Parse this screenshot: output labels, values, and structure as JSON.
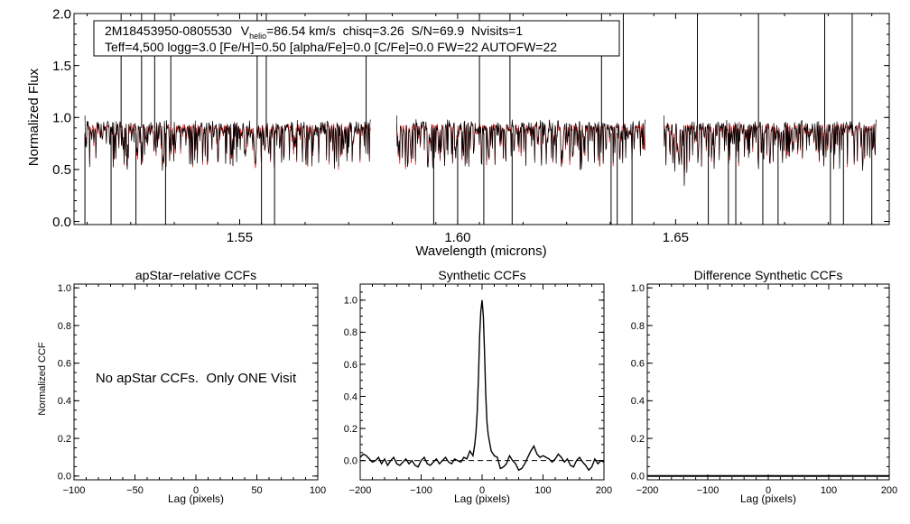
{
  "colors": {
    "observed": "#000000",
    "model": "#e00000",
    "axes": "#000000"
  },
  "chart_data": [
    {
      "id": "spectrum",
      "type": "line",
      "title": "",
      "xlabel": "Wavelength (microns)",
      "ylabel": "Normalized Flux",
      "xlim": [
        1.512,
        1.699
      ],
      "ylim": [
        -0.03,
        2.0
      ],
      "xticks": [
        1.55,
        1.6,
        1.65
      ],
      "xtick_labels": [
        "1.55",
        "1.60",
        "1.65"
      ],
      "yticks": [
        0.0,
        0.5,
        1.0,
        1.5,
        2.0
      ],
      "ytick_labels": [
        "0.0",
        "0.5",
        "1.0",
        "1.5",
        "2.0"
      ],
      "chips": [
        [
          1.5145,
          1.58
        ],
        [
          1.586,
          1.643
        ],
        [
          1.6473,
          1.696
        ]
      ],
      "continuum_level": 0.92,
      "spikes_up": [
        1.5228,
        1.5275,
        1.5305,
        1.5342,
        1.554,
        1.5561,
        1.579,
        1.605,
        1.612,
        1.633,
        1.638,
        1.655,
        1.669,
        1.6842,
        1.6905
      ],
      "dips_down": [
        1.5145,
        1.5205,
        1.5262,
        1.533,
        1.555,
        1.558,
        1.5945,
        1.6,
        1.606,
        1.6125,
        1.6352,
        1.6366,
        1.64,
        1.6575,
        1.6621,
        1.6638,
        1.67,
        1.6735,
        1.6855,
        1.6885,
        1.695
      ],
      "annotation": {
        "line1_id": "2M18453950-0805530",
        "line1_v": "V",
        "line1_sub": "helio",
        "line1_rest": "=86.54 km/s  chisq=3.26  S/N=69.9  Nvisits=1",
        "line2": "Teff=4,500 logg=3.0 [Fe/H]=0.50 [alpha/Fe]=0.0 [C/Fe]=0.0 FW=22 AUTOFW=22"
      }
    },
    {
      "id": "apstar",
      "type": "line",
      "title": "apStar−relative CCFs",
      "xlabel": "Lag (pixels)",
      "ylabel": "Normalized CCF",
      "xlim": [
        -100,
        100
      ],
      "ylim": [
        -0.02,
        1.02
      ],
      "xticks": [
        -100,
        -50,
        0,
        50,
        100
      ],
      "xtick_labels": [
        "−100",
        "−50",
        "0",
        "50",
        "100"
      ],
      "yticks": [
        0.0,
        0.2,
        0.4,
        0.6,
        0.8,
        1.0
      ],
      "ytick_labels": [
        "0.0",
        "0.2",
        "0.4",
        "0.6",
        "0.8",
        "1.0"
      ],
      "message": "No apStar CCFs.  Only ONE Visit"
    },
    {
      "id": "synthetic",
      "type": "line",
      "title": "Synthetic CCFs",
      "xlabel": "Lag (pixels)",
      "ylabel": "",
      "xlim": [
        -200,
        200
      ],
      "ylim": [
        -0.12,
        1.1
      ],
      "xticks": [
        -200,
        -100,
        0,
        100,
        200
      ],
      "xtick_labels": [
        "−200",
        "−100",
        "0",
        "100",
        "200"
      ],
      "yticks": [
        0.0,
        0.2,
        0.4,
        0.6,
        0.8,
        1.0
      ],
      "ytick_labels": [
        "0.0",
        "0.2",
        "0.4",
        "0.6",
        "0.8",
        "1.0"
      ],
      "zero_line": 0.0,
      "peak_lag": 0,
      "peak_value": 1.0,
      "series": [
        {
          "name": "ccf",
          "x": [
            -200,
            -195,
            -190,
            -185,
            -180,
            -175,
            -170,
            -165,
            -160,
            -155,
            -150,
            -145,
            -140,
            -135,
            -130,
            -125,
            -120,
            -115,
            -110,
            -105,
            -100,
            -95,
            -90,
            -85,
            -80,
            -75,
            -70,
            -65,
            -60,
            -55,
            -50,
            -45,
            -40,
            -35,
            -30,
            -25,
            -20,
            -15,
            -12,
            -10,
            -8,
            -6,
            -4,
            -2,
            0,
            2,
            4,
            6,
            8,
            10,
            12,
            15,
            20,
            25,
            30,
            35,
            40,
            45,
            50,
            55,
            60,
            65,
            70,
            75,
            80,
            85,
            90,
            95,
            100,
            105,
            110,
            115,
            120,
            125,
            130,
            135,
            140,
            145,
            150,
            155,
            160,
            165,
            170,
            175,
            180,
            185,
            190,
            195,
            200
          ],
          "y": [
            0.02,
            0.04,
            0.03,
            0.01,
            -0.01,
            0.0,
            0.02,
            -0.02,
            0.01,
            -0.03,
            0.0,
            0.02,
            -0.02,
            -0.03,
            -0.01,
            0.01,
            -0.02,
            0.0,
            -0.03,
            -0.04,
            0.0,
            0.02,
            -0.02,
            -0.03,
            -0.01,
            0.01,
            -0.02,
            0.0,
            0.02,
            -0.01,
            -0.02,
            0.01,
            0.0,
            -0.01,
            0.02,
            0.01,
            0.06,
            0.03,
            0.1,
            0.18,
            0.3,
            0.52,
            0.78,
            0.93,
            1.0,
            0.9,
            0.68,
            0.42,
            0.24,
            0.16,
            0.12,
            0.06,
            0.03,
            0.02,
            -0.05,
            -0.04,
            -0.02,
            0.03,
            0.0,
            -0.02,
            -0.06,
            -0.05,
            -0.02,
            0.02,
            0.06,
            0.09,
            0.04,
            0.02,
            0.03,
            0.02,
            0.01,
            -0.01,
            0.01,
            0.04,
            0.02,
            -0.01,
            0.01,
            -0.03,
            -0.04,
            0.0,
            0.02,
            -0.01,
            -0.03,
            -0.06,
            -0.04,
            0.01,
            -0.02,
            0.0,
            -0.01
          ]
        }
      ]
    },
    {
      "id": "difference",
      "type": "line",
      "title": "Difference Synthetic CCFs",
      "xlabel": "Lag (pixels)",
      "ylabel": "",
      "xlim": [
        -200,
        200
      ],
      "ylim": [
        -0.02,
        1.02
      ],
      "xticks": [
        -200,
        -100,
        0,
        100,
        200
      ],
      "xtick_labels": [
        "−200",
        "−100",
        "0",
        "100",
        "200"
      ],
      "yticks": [
        0.0,
        0.2,
        0.4,
        0.6,
        0.8,
        1.0
      ],
      "ytick_labels": [
        "0.0",
        "0.2",
        "0.4",
        "0.6",
        "0.8",
        "1.0"
      ],
      "series": [
        {
          "name": "difference",
          "x": [
            -200,
            200
          ],
          "y": [
            0.0,
            0.0
          ]
        }
      ]
    }
  ]
}
